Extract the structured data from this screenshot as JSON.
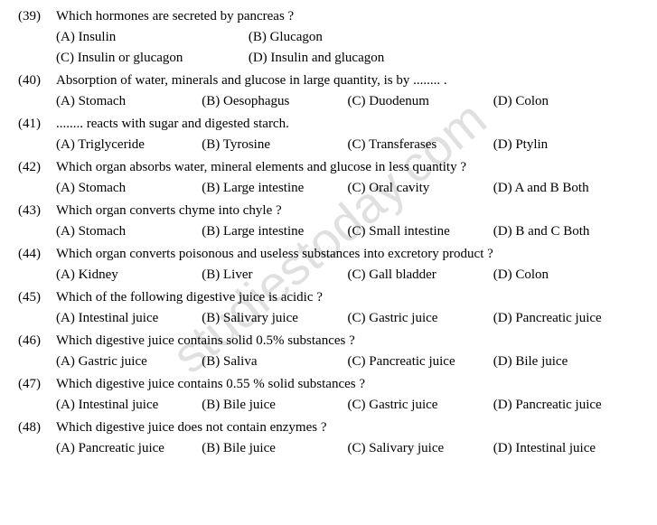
{
  "watermark": "studiestoday.com",
  "questions": [
    {
      "num": "(39)",
      "text": "Which hormones are secreted by pancreas ?",
      "layout": "2",
      "opts": [
        "(A) Insulin",
        "(B) Glucagon",
        "(C) Insulin or glucagon",
        "(D) Insulin and glucagon"
      ]
    },
    {
      "num": "(40)",
      "text": "Absorption of water, minerals and glucose in large quantity, is by ........ .",
      "layout": "4",
      "opts": [
        "(A) Stomach",
        "(B) Oesophagus",
        "(C) Duodenum",
        "(D) Colon"
      ]
    },
    {
      "num": "(41)",
      "text": "........ reacts with sugar and digested starch.",
      "layout": "4",
      "opts": [
        "(A) Triglyceride",
        "(B) Tyrosine",
        "(C)  Transferases",
        "(D) Ptylin"
      ]
    },
    {
      "num": "(42)",
      "text": "Which organ absorbs water, mineral elements and glucose in less quantity ?",
      "layout": "4",
      "opts": [
        "(A) Stomach",
        "(B) Large intestine",
        "(C) Oral cavity",
        "(D) A  and B Both"
      ]
    },
    {
      "num": "(43)",
      "text": "Which organ converts chyme into chyle ?",
      "layout": "4",
      "opts": [
        "(A) Stomach",
        "(B) Large intestine",
        "(C) Small intestine",
        "(D) B and C Both"
      ]
    },
    {
      "num": "(44)",
      "text": "Which organ converts poisonous and useless substances into excretory product ?",
      "layout": "4",
      "opts": [
        "(A) Kidney",
        "(B) Liver",
        "(C) Gall bladder",
        "(D) Colon"
      ]
    },
    {
      "num": "(45)",
      "text": "Which of the following digestive juice is acidic ?",
      "layout": "4",
      "opts": [
        "(A) Intestinal juice",
        "(B) Salivary juice",
        "(C) Gastric juice",
        "(D) Pancreatic juice"
      ]
    },
    {
      "num": "(46)",
      "text": "Which digestive juice contains solid 0.5% substances ?",
      "layout": "4",
      "opts": [
        "(A) Gastric juice",
        "(B) Saliva",
        "(C) Pancreatic juice",
        "(D) Bile juice"
      ]
    },
    {
      "num": "(47)",
      "text": "Which digestive juice contains 0.55 % solid substances ?",
      "layout": "4",
      "opts": [
        "(A) Intestinal juice",
        "(B) Bile juice",
        "(C) Gastric juice",
        "(D) Pancreatic juice"
      ]
    },
    {
      "num": "(48)",
      "text": "Which digestive juice does not contain enzymes ?",
      "layout": "4",
      "opts": [
        "(A) Pancreatic juice",
        "(B) Bile juice",
        "(C) Salivary juice",
        "(D) Intestinal juice"
      ]
    }
  ]
}
